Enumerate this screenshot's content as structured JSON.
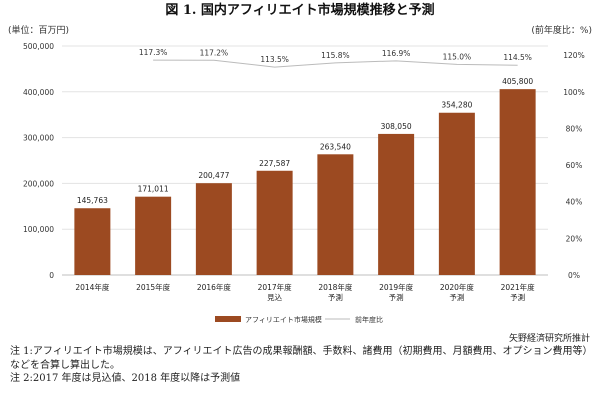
{
  "title": "図 1.  国内アフィリエイト市場規模推移と予測",
  "unit_left": "(単位：百万円)",
  "unit_right": "(前年度比：%)",
  "source": "矢野経済研究所推計",
  "notes": [
    "注 1:アフィリエイト市場規模は、アフィリエイト広告の成果報酬額、手数料、諸費用（初期費用、月額費用、オプション費用等）などを合算し算出した。",
    "注 2:2017 年度は見込値、2018 年度以降は予測値"
  ],
  "colors": {
    "bar": "#9C4A21",
    "line": "#BBBBBB",
    "grid": "#E3E3E3"
  },
  "chart_data": {
    "type": "bar",
    "title": "図 1.  国内アフィリエイト市場規模推移と予測",
    "categories": [
      [
        "2014年度"
      ],
      [
        "2015年度"
      ],
      [
        "2016年度"
      ],
      [
        "2017年度",
        "見込"
      ],
      [
        "2018年度",
        "予測"
      ],
      [
        "2019年度",
        "予測"
      ],
      [
        "2020年度",
        "予測"
      ],
      [
        "2021年度",
        "予測"
      ]
    ],
    "series": [
      {
        "name": "アフィリエイト市場規模",
        "axis": "left",
        "values": [
          145763,
          171011,
          200477,
          227587,
          263540,
          308050,
          354280,
          405800
        ],
        "labels": [
          "145,763",
          "171,011",
          "200,477",
          "227,587",
          "263,540",
          "308,050",
          "354,280",
          "405,800"
        ]
      },
      {
        "name": "前年度比",
        "type": "line",
        "axis": "right",
        "values": [
          null,
          117.3,
          117.2,
          113.5,
          115.8,
          116.9,
          115.0,
          114.5
        ],
        "labels": [
          "",
          "117.3%",
          "117.2%",
          "113.5%",
          "115.8%",
          "116.9%",
          "115.0%",
          "114.5%"
        ]
      }
    ],
    "y_left": {
      "ticks": [
        0,
        100000,
        200000,
        300000,
        400000,
        500000
      ],
      "tick_labels": [
        "0",
        "100,000",
        "200,000",
        "300,000",
        "400,000",
        "500,000"
      ],
      "ylim": [
        0,
        500000
      ]
    },
    "y_right": {
      "ticks": [
        0,
        20,
        40,
        60,
        80,
        100,
        120
      ],
      "tick_labels": [
        "0%",
        "20%",
        "40%",
        "60%",
        "80%",
        "100%",
        "120%"
      ],
      "ylim": [
        0,
        125
      ]
    },
    "grid": true,
    "legend_position": "bottom"
  }
}
